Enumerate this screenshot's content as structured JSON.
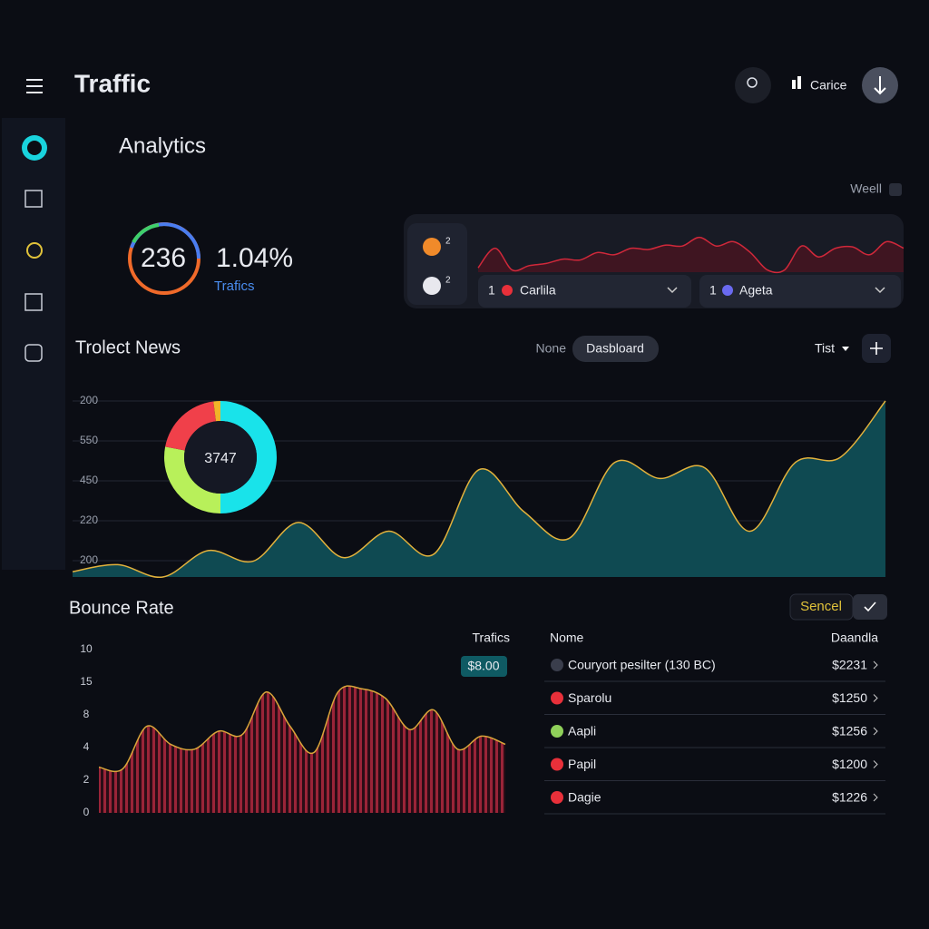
{
  "header": {
    "title": "Traffic",
    "user": "Carice"
  },
  "analytics": {
    "title": "Analytics",
    "period": "Weell",
    "gauge_value": "236",
    "rate": "1.04%",
    "rate_label": "Trafics"
  },
  "panel": {
    "avatars": [
      "2",
      "2"
    ],
    "sparkline": {
      "type": "area",
      "color": "#d0283a",
      "ylim": [
        0,
        100
      ],
      "values": [
        10,
        55,
        5,
        15,
        20,
        30,
        28,
        45,
        40,
        55,
        52,
        62,
        60,
        80,
        60,
        70,
        45,
        5,
        5,
        60,
        35,
        55,
        58,
        40,
        70,
        55
      ]
    },
    "dropdowns": [
      {
        "count": "1",
        "label": "Carlila"
      },
      {
        "count": "1",
        "label": "Ageta"
      }
    ]
  },
  "news": {
    "title": "Trolect News",
    "tabs": [
      "None",
      "Dasbloard"
    ],
    "filter": "Tist",
    "chart": {
      "type": "area",
      "color": "#e3b23c",
      "fill": "#0f4a52",
      "ylim": [
        0,
        100
      ],
      "y_labels": [
        "200",
        "550",
        "450",
        "220",
        "200"
      ],
      "values": [
        3,
        7,
        0,
        15,
        9,
        31,
        11,
        26,
        13,
        61,
        37,
        22,
        65,
        56,
        62,
        26,
        65,
        68,
        100
      ]
    },
    "donut": {
      "type": "pie",
      "label": "3747",
      "values": [
        50,
        28,
        20,
        2
      ],
      "colors": [
        "#19e3ea",
        "#b8f05a",
        "#f0404a",
        "#f0b429"
      ]
    }
  },
  "bounce": {
    "title": "Bounce Rate",
    "button": "Sencel",
    "series_label": "Trafics",
    "badge": "$8.00",
    "chart": {
      "type": "area",
      "color": "#d9a63a",
      "fill": "#8a1f34",
      "ylim": [
        0,
        100
      ],
      "y_labels": [
        "10",
        "15",
        "8",
        "4",
        "2",
        "0"
      ],
      "values": [
        28,
        27,
        53,
        42,
        39,
        50,
        48,
        74,
        53,
        37,
        74,
        76,
        70,
        51,
        63,
        39,
        47,
        42
      ]
    }
  },
  "table": {
    "headers": [
      "Nome",
      "Daandla"
    ],
    "rows": [
      [
        "Couryort pesilter (130 BC)",
        "$2231"
      ],
      [
        "Sparolu",
        "$1250"
      ],
      [
        "Aapli",
        "$1256"
      ],
      [
        "Papil",
        "$1200"
      ],
      [
        "Dagie",
        "$1226"
      ]
    ]
  }
}
